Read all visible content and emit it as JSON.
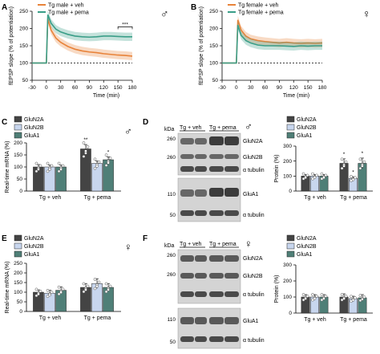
{
  "panels": {
    "A": {
      "label": "A",
      "sex": "♂"
    },
    "B": {
      "label": "B",
      "sex": "♀"
    },
    "C": {
      "label": "C",
      "sex": "♂"
    },
    "D": {
      "label": "D",
      "sex": "♂"
    },
    "E": {
      "label": "E",
      "sex": "♀"
    },
    "F": {
      "label": "F",
      "sex": "♀"
    }
  },
  "colors": {
    "veh": "#e8833a",
    "pema": "#3a9e88",
    "glun2a": "#444444",
    "glun2b": "#c8d6ee",
    "glua1": "#4f7f77"
  },
  "blot": {
    "kda_label": "kDa",
    "lane_labels": [
      "Tg + veh",
      "Tg + pema"
    ],
    "D": {
      "markers": [
        "260",
        "260",
        "110",
        "50"
      ],
      "bands": [
        "GluN2A",
        "GluN2B",
        "α tubulin",
        "GluA1",
        "α tubulin"
      ]
    },
    "F": {
      "markers": [
        "260",
        "260",
        "110",
        "50"
      ],
      "bands": [
        "GluN2A",
        "GluN2B",
        "α tubulin",
        "GluA1",
        "α tubulin"
      ]
    }
  },
  "chart_data": [
    {
      "panel": "A",
      "type": "line",
      "xlabel": "Time (min)",
      "ylabel": "fEPSP slope (% of potentiation)",
      "xlim": [
        -30,
        180
      ],
      "ylim": [
        50,
        250
      ],
      "xticks": [
        "-30",
        "0",
        "30",
        "60",
        "90",
        "120",
        "150",
        "180"
      ],
      "yticks": [
        "50",
        "100",
        "150",
        "200",
        "250"
      ],
      "baseline": 100,
      "annotation": "***",
      "series": [
        {
          "name": "Tg male + veh",
          "color_key": "veh",
          "x": [
            -30,
            -5,
            0,
            3,
            10,
            20,
            30,
            45,
            60,
            75,
            90,
            105,
            120,
            135,
            150,
            165,
            180
          ],
          "y": [
            100,
            100,
            100,
            228,
            195,
            172,
            160,
            148,
            140,
            135,
            132,
            130,
            127,
            125,
            123,
            122,
            120
          ]
        },
        {
          "name": "Tg male + pema",
          "color_key": "pema",
          "x": [
            -30,
            -5,
            0,
            3,
            10,
            20,
            30,
            45,
            60,
            75,
            90,
            105,
            120,
            135,
            150,
            165,
            180
          ],
          "y": [
            100,
            100,
            100,
            240,
            215,
            198,
            190,
            183,
            178,
            176,
            175,
            176,
            178,
            178,
            177,
            176,
            176
          ]
        }
      ]
    },
    {
      "panel": "B",
      "type": "line",
      "xlabel": "Time (min)",
      "ylabel": "fEPSP slope (% of potentiation)",
      "xlim": [
        -30,
        180
      ],
      "ylim": [
        50,
        250
      ],
      "xticks": [
        "-30",
        "0",
        "30",
        "60",
        "90",
        "120",
        "150",
        "180"
      ],
      "yticks": [
        "50",
        "100",
        "150",
        "200",
        "250"
      ],
      "baseline": 100,
      "series": [
        {
          "name": "Tg female + veh",
          "color_key": "veh",
          "x": [
            -30,
            -5,
            0,
            3,
            10,
            20,
            30,
            45,
            60,
            75,
            90,
            105,
            120,
            135,
            150,
            165,
            180
          ],
          "y": [
            100,
            100,
            100,
            225,
            195,
            178,
            170,
            165,
            162,
            160,
            158,
            160,
            158,
            157,
            158,
            157,
            158
          ]
        },
        {
          "name": "Tg female + pema",
          "color_key": "pema",
          "x": [
            -30,
            -5,
            0,
            3,
            10,
            20,
            30,
            45,
            60,
            75,
            90,
            105,
            120,
            135,
            150,
            165,
            180
          ],
          "y": [
            100,
            100,
            100,
            210,
            180,
            165,
            158,
            152,
            150,
            150,
            150,
            149,
            148,
            150,
            149,
            150,
            150
          ]
        }
      ]
    },
    {
      "panel": "C",
      "type": "bar",
      "ylabel": "Real-time mRNA (%)",
      "ylim": [
        0,
        200
      ],
      "yticks": [
        "0",
        "50",
        "100",
        "150",
        "200"
      ],
      "categories": [
        "Tg + veh",
        "Tg + pema"
      ],
      "series": [
        {
          "name": "GluN2A",
          "color_key": "glun2a",
          "values": [
            100,
            175
          ],
          "err": [
            10,
            18
          ],
          "marker": [
            "",
            "**"
          ]
        },
        {
          "name": "GluN2B",
          "color_key": "glun2b",
          "values": [
            100,
            115
          ],
          "err": [
            8,
            10
          ],
          "marker": [
            "",
            ""
          ]
        },
        {
          "name": "GluA1",
          "color_key": "glua1",
          "values": [
            100,
            130
          ],
          "err": [
            8,
            12
          ],
          "marker": [
            "",
            "*"
          ]
        }
      ]
    },
    {
      "panel": "D",
      "type": "bar",
      "ylabel": "Protein (%)",
      "ylim": [
        0,
        300
      ],
      "yticks": [
        "0",
        "100",
        "200",
        "300"
      ],
      "categories": [
        "Tg + veh",
        "Tg + pema"
      ],
      "series": [
        {
          "name": "GluN2A",
          "color_key": "glun2a",
          "values": [
            100,
            185
          ],
          "err": [
            10,
            30
          ],
          "marker": [
            "",
            "*"
          ]
        },
        {
          "name": "GluN2B",
          "color_key": "glun2b",
          "values": [
            100,
            85
          ],
          "err": [
            10,
            10
          ],
          "marker": [
            "",
            "*"
          ]
        },
        {
          "name": "GluA1",
          "color_key": "glua1",
          "values": [
            100,
            185
          ],
          "err": [
            10,
            35
          ],
          "marker": [
            "",
            "*"
          ]
        }
      ]
    },
    {
      "panel": "E",
      "type": "bar",
      "ylabel": "Real-time mRNA (%)",
      "ylim": [
        0,
        250
      ],
      "yticks": [
        "0",
        "50",
        "100",
        "150",
        "200",
        "250"
      ],
      "categories": [
        "Tg + veh",
        "Tg + pema"
      ],
      "series": [
        {
          "name": "GluN2A",
          "color_key": "glun2a",
          "values": [
            100,
            125
          ],
          "err": [
            12,
            20
          ],
          "marker": [
            "",
            ""
          ]
        },
        {
          "name": "GluN2B",
          "color_key": "glun2b",
          "values": [
            95,
            145
          ],
          "err": [
            15,
            25
          ],
          "marker": [
            "",
            ""
          ]
        },
        {
          "name": "GluA1",
          "color_key": "glua1",
          "values": [
            110,
            125
          ],
          "err": [
            18,
            20
          ],
          "marker": [
            "",
            ""
          ]
        }
      ]
    },
    {
      "panel": "F",
      "type": "bar",
      "ylabel": "Protein (%)",
      "ylim": [
        0,
        300
      ],
      "yticks": [
        "0",
        "100",
        "200",
        "300"
      ],
      "categories": [
        "Tg + veh",
        "Tg + pema"
      ],
      "series": [
        {
          "name": "GluN2A",
          "color_key": "glun2a",
          "values": [
            100,
            100
          ],
          "err": [
            15,
            20
          ],
          "marker": [
            "",
            ""
          ]
        },
        {
          "name": "GluN2B",
          "color_key": "glun2b",
          "values": [
            100,
            90
          ],
          "err": [
            15,
            15
          ],
          "marker": [
            "",
            ""
          ]
        },
        {
          "name": "GluA1",
          "color_key": "glua1",
          "values": [
            100,
            95
          ],
          "err": [
            15,
            20
          ],
          "marker": [
            "",
            ""
          ]
        }
      ]
    }
  ]
}
